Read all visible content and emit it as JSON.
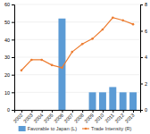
{
  "chart_data": {
    "type": "bar",
    "x": [
      2002,
      2003,
      2004,
      2005,
      2006,
      2007,
      2008,
      2009,
      2010,
      2011,
      2012,
      2013
    ],
    "xlim": [
      2001.3,
      2013.7
    ],
    "xticks": [
      2002,
      2003,
      2004,
      2005,
      2006,
      2007,
      2008,
      2009,
      2010,
      2011,
      2012,
      2013
    ],
    "series": [
      {
        "name": "Favorable to Japan (L)",
        "type": "bar",
        "color": "#5B9BD5",
        "values": [
          0,
          0,
          0,
          0,
          52,
          0,
          0,
          10,
          10,
          13,
          10,
          10
        ]
      },
      {
        "name": "Trade Intensity (R)",
        "type": "line",
        "color": "#ED7D31",
        "marker": "circle",
        "axis": "y2",
        "values": [
          3.0,
          3.8,
          3.8,
          3.4,
          3.2,
          4.4,
          5.0,
          5.4,
          6.1,
          7.0,
          6.8,
          6.5
        ]
      }
    ],
    "ylim": [
      0,
      60
    ],
    "yticks": [
      0,
      10,
      20,
      30,
      40,
      50,
      60
    ],
    "y2lim": [
      0,
      8
    ],
    "y2ticks": [
      0,
      2,
      4,
      6,
      8
    ],
    "grid": true,
    "legend": "bottom"
  }
}
